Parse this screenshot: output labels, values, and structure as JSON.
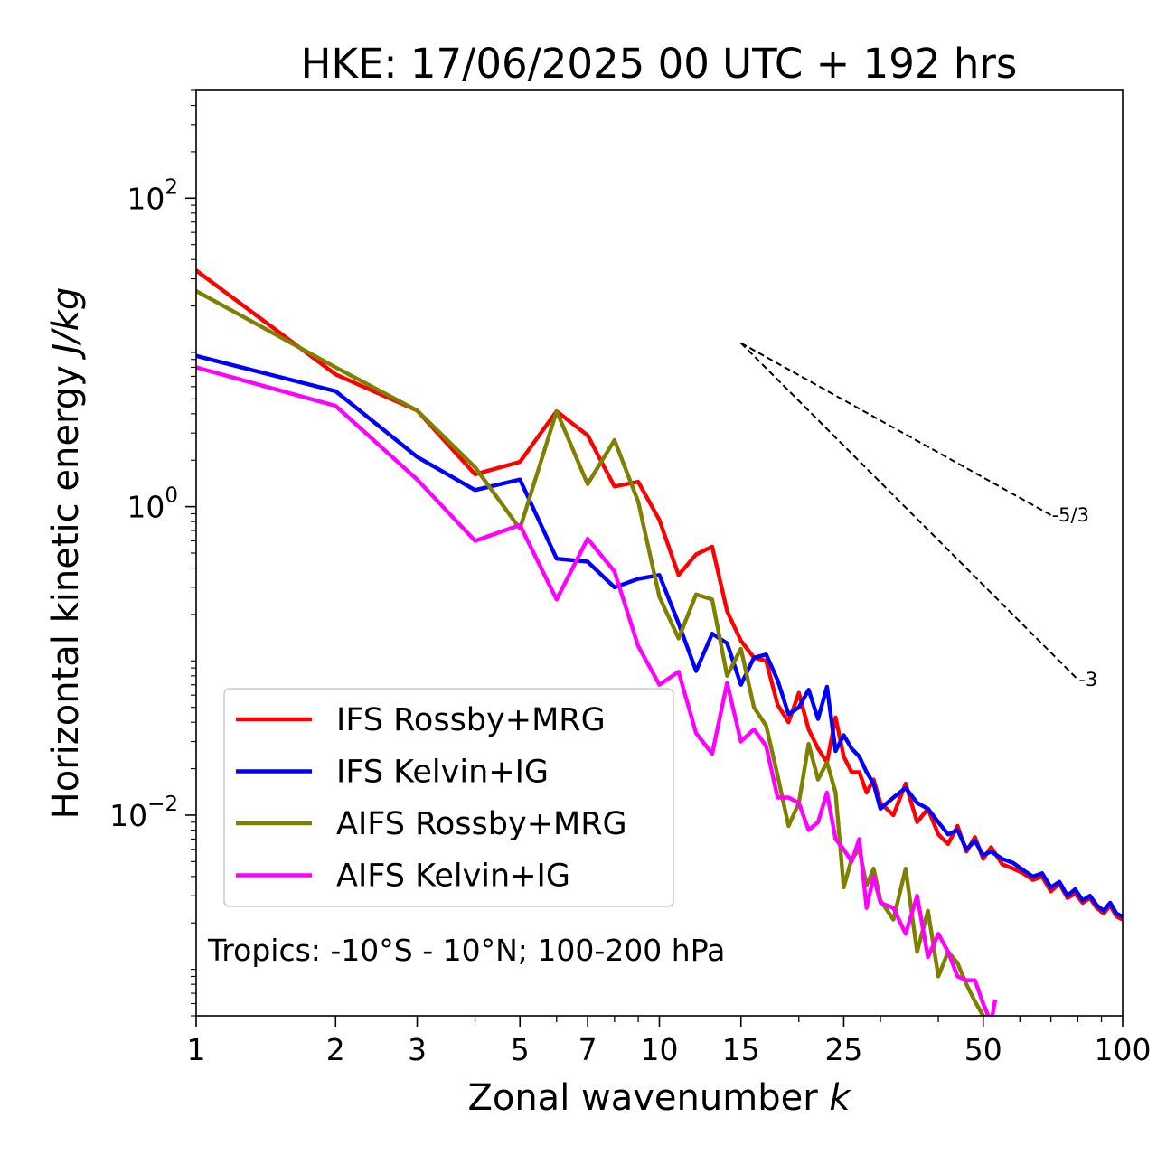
{
  "chart_data": {
    "type": "line",
    "title": "HKE: 17/06/2025 00 UTC + 192 hrs",
    "xlabel": "Zonal wavenumber",
    "xlabel_var": "k",
    "ylabel": "Horizontal kinetic energy",
    "ylabel_unit": "J/kg",
    "x_scale": "log",
    "y_scale": "log",
    "xlim": [
      1,
      100
    ],
    "ylim": [
      0.0005,
      500
    ],
    "x_ticks": [
      {
        "value": 1,
        "label": "1"
      },
      {
        "value": 2,
        "label": "2"
      },
      {
        "value": 3,
        "label": "3"
      },
      {
        "value": 5,
        "label": "5"
      },
      {
        "value": 7,
        "label": "7"
      },
      {
        "value": 10,
        "label": "10"
      },
      {
        "value": 15,
        "label": "15"
      },
      {
        "value": 25,
        "label": "25"
      },
      {
        "value": 50,
        "label": "50"
      },
      {
        "value": 100,
        "label": "100"
      }
    ],
    "y_ticks": [
      {
        "value": 100,
        "base": "10",
        "exp": "2"
      },
      {
        "value": 1,
        "base": "10",
        "exp": "0"
      },
      {
        "value": 0.01,
        "base": "10",
        "exp": "−2"
      }
    ],
    "annotation": "Tropics: -10°S - 10°N; 100-200 hPa",
    "grid": false,
    "legend_position": "lower-left",
    "reference_slopes": [
      {
        "label": "-5/3",
        "slope": -1.6667,
        "x": [
          15,
          70
        ],
        "y0": 11.5
      },
      {
        "label": "-3",
        "slope": -3,
        "x": [
          15,
          80
        ],
        "y0": 11.5
      }
    ],
    "series": [
      {
        "name": "IFS Rossby+MRG",
        "color": "#ff0000",
        "x": [
          1,
          2,
          3,
          4,
          5,
          6,
          7,
          8,
          9,
          10,
          11,
          12,
          13,
          14,
          15,
          16,
          17,
          18,
          19,
          20,
          21,
          22,
          23,
          24,
          25,
          26,
          27,
          28,
          29,
          30,
          32,
          34,
          36,
          38,
          40,
          42,
          44,
          46,
          48,
          50,
          52,
          55,
          58,
          61,
          64,
          67,
          70,
          73,
          76,
          79,
          82,
          85,
          88,
          91,
          94,
          97,
          100
        ],
        "y": [
          34,
          7.2,
          4.2,
          1.62,
          1.95,
          4.15,
          2.9,
          1.35,
          1.45,
          0.82,
          0.36,
          0.49,
          0.55,
          0.21,
          0.135,
          0.105,
          0.1,
          0.052,
          0.04,
          0.062,
          0.036,
          0.027,
          0.022,
          0.043,
          0.024,
          0.019,
          0.019,
          0.014,
          0.017,
          0.012,
          0.01,
          0.016,
          0.009,
          0.011,
          0.0075,
          0.0065,
          0.0085,
          0.0058,
          0.0072,
          0.0052,
          0.0062,
          0.0048,
          0.0045,
          0.0042,
          0.0038,
          0.004,
          0.0032,
          0.0036,
          0.0029,
          0.0031,
          0.0027,
          0.0029,
          0.0025,
          0.0023,
          0.0026,
          0.0022,
          0.0021
        ]
      },
      {
        "name": "IFS Kelvin+IG",
        "color": "#0000ff",
        "x": [
          1,
          2,
          3,
          4,
          5,
          6,
          7,
          8,
          9,
          10,
          11,
          12,
          13,
          14,
          15,
          16,
          17,
          18,
          19,
          20,
          21,
          22,
          23,
          24,
          25,
          26,
          27,
          28,
          29,
          30,
          32,
          34,
          36,
          38,
          40,
          42,
          44,
          46,
          48,
          50,
          52,
          55,
          58,
          61,
          64,
          67,
          70,
          73,
          76,
          79,
          82,
          85,
          88,
          91,
          94,
          97,
          100
        ],
        "y": [
          9.5,
          5.6,
          2.1,
          1.28,
          1.5,
          0.46,
          0.44,
          0.3,
          0.34,
          0.36,
          0.175,
          0.086,
          0.15,
          0.13,
          0.07,
          0.105,
          0.11,
          0.075,
          0.045,
          0.05,
          0.065,
          0.042,
          0.068,
          0.026,
          0.033,
          0.027,
          0.024,
          0.019,
          0.016,
          0.011,
          0.013,
          0.015,
          0.012,
          0.011,
          0.009,
          0.0075,
          0.008,
          0.006,
          0.0068,
          0.0055,
          0.0058,
          0.0052,
          0.0049,
          0.0044,
          0.004,
          0.0042,
          0.0034,
          0.0037,
          0.003,
          0.0033,
          0.0028,
          0.003,
          0.0026,
          0.0024,
          0.0027,
          0.0023,
          0.0022
        ]
      },
      {
        "name": "AIFS Rossby+MRG",
        "color": "#808000",
        "x": [
          1,
          2,
          3,
          4,
          5,
          6,
          7,
          8,
          9,
          10,
          11,
          12,
          13,
          14,
          15,
          16,
          17,
          18,
          19,
          20,
          21,
          22,
          23,
          24,
          25,
          26,
          27,
          28,
          29,
          30,
          32,
          34,
          36,
          38,
          40,
          42,
          44,
          46,
          48,
          50
        ],
        "y": [
          25,
          8,
          4.2,
          1.8,
          0.72,
          4.15,
          1.4,
          2.7,
          1.08,
          0.26,
          0.14,
          0.27,
          0.25,
          0.08,
          0.12,
          0.05,
          0.038,
          0.018,
          0.0085,
          0.012,
          0.029,
          0.017,
          0.022,
          0.014,
          0.0034,
          0.0052,
          0.006,
          0.0035,
          0.0045,
          0.0028,
          0.0021,
          0.0045,
          0.0013,
          0.0024,
          0.0009,
          0.0013,
          0.0011,
          0.0008,
          0.00062,
          0.0005
        ]
      },
      {
        "name": "AIFS Kelvin+IG",
        "color": "#ff00ff",
        "x": [
          1,
          2,
          3,
          4,
          5,
          6,
          7,
          8,
          9,
          10,
          11,
          12,
          13,
          14,
          15,
          16,
          17,
          18,
          19,
          20,
          21,
          22,
          23,
          24,
          25,
          26,
          27,
          28,
          29,
          30,
          32,
          34,
          36,
          38,
          40,
          42,
          44,
          46,
          48,
          50,
          52,
          53
        ],
        "y": [
          8,
          4.5,
          1.5,
          0.6,
          0.76,
          0.25,
          0.62,
          0.38,
          0.125,
          0.07,
          0.085,
          0.034,
          0.025,
          0.072,
          0.03,
          0.036,
          0.028,
          0.013,
          0.013,
          0.012,
          0.008,
          0.009,
          0.014,
          0.007,
          0.006,
          0.005,
          0.007,
          0.0025,
          0.004,
          0.0027,
          0.0025,
          0.0017,
          0.003,
          0.0012,
          0.0017,
          0.0013,
          0.0009,
          0.00085,
          0.00085,
          0.0006,
          0.00045,
          0.00062
        ]
      }
    ]
  }
}
